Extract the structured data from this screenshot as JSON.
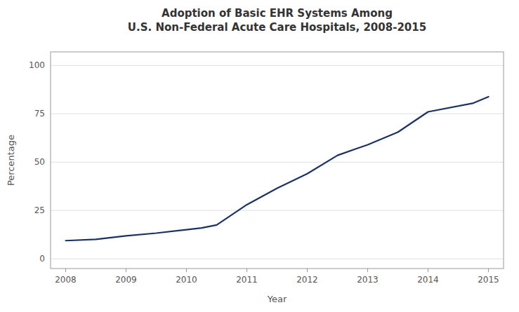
{
  "chart_data": {
    "type": "line",
    "title": "Adoption of Basic EHR Systems Among\nU.S. Non-Federal Acute Care Hospitals, 2008-2015",
    "x_label": "Year",
    "y_label": "Percentage",
    "x": [
      2008,
      2008.5,
      2009,
      2009.5,
      2010,
      2010.25,
      2010.5,
      2011,
      2011.5,
      2012,
      2012.5,
      2013,
      2013.5,
      2014,
      2014.75,
      2015
    ],
    "values": [
      9.4,
      10.1,
      11.9,
      13.3,
      15.1,
      16.0,
      17.5,
      28.0,
      36.5,
      44.0,
      53.5,
      59.0,
      65.5,
      76.0,
      80.5,
      83.8
    ],
    "color": "#1a3263",
    "xlim": [
      2007.75,
      2015.25
    ],
    "ylim": [
      -5,
      107
    ],
    "xticks": [
      2008,
      2009,
      2010,
      2011,
      2012,
      2013,
      2014,
      2015
    ],
    "yticks": [
      0,
      25,
      50,
      75,
      100
    ],
    "grid": true
  }
}
